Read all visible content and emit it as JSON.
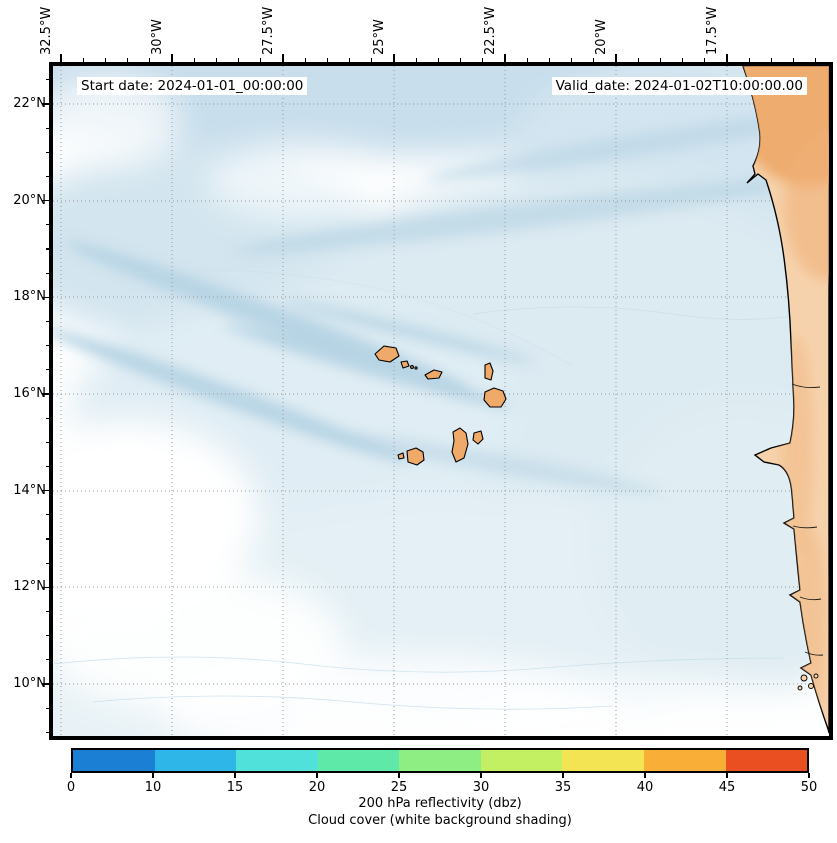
{
  "chart_data": {
    "type": "heatmap",
    "description": "Cloud-cover forecast map over the eastern tropical Atlantic showing the Cape Verde islands and the West African coastline; cloud cover drawn as light blue shading on a white background, land areas in light orange.",
    "annotations": [
      "Start date: 2024-01-01_00:00:00",
      "Valid_date: 2024-01-02T10:00:00.00"
    ],
    "x_tick_labels": [
      "32.5°W",
      "30°W",
      "27.5°W",
      "25°W",
      "22.5°W",
      "20°W",
      "17.5°W"
    ],
    "y_tick_labels": [
      "22°N",
      "20°N",
      "18°N",
      "16°N",
      "14°N",
      "12°N",
      "10°N"
    ],
    "grid": true,
    "grid_style": "dotted",
    "colorbar": {
      "label": "200 hPa reflectivity (dbz)",
      "sublabel": "Cloud cover (white background shading)",
      "orientation": "horizontal",
      "ticks": [
        "0",
        "10",
        "15",
        "20",
        "25",
        "30",
        "35",
        "40",
        "45",
        "50"
      ],
      "segment_colors": [
        "#1b7fd4",
        "#2fb6e9",
        "#50e2da",
        "#5fe9a9",
        "#8fee83",
        "#c3ef63",
        "#f2e452",
        "#f8ae37",
        "#e94f20"
      ]
    },
    "map_colors": {
      "land": "#f6d2ac",
      "islands": "#efa968",
      "cloud_shading": "#cfe3ee",
      "ocean_background": "#ffffff"
    },
    "features": [
      "Cape Verde islands",
      "West African coastline"
    ]
  }
}
